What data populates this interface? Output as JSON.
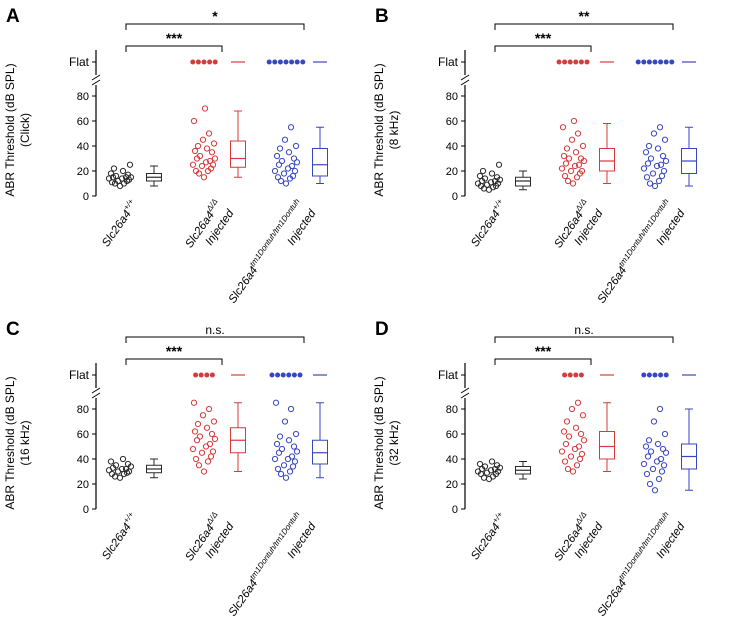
{
  "figure": {
    "background": "#ffffff",
    "flat_label": "Flat",
    "axis_color": "#000000"
  },
  "chart_data": [
    {
      "type": "box+scatter",
      "panel": "A",
      "ylabel": "ABR Threshold (dB SPL)",
      "ylabel2": "(Click)",
      "yticks": [
        0,
        20,
        40,
        60,
        80
      ],
      "ylim": [
        0,
        80
      ],
      "flat_label": "Flat",
      "groups": [
        {
          "prefix": "",
          "gene": "Slc26a4",
          "sup": "+/+",
          "color": "#2a2a2a",
          "points": [
            8,
            10,
            10,
            11,
            12,
            12,
            13,
            14,
            14,
            15,
            15,
            15,
            16,
            17,
            18,
            20,
            22,
            25
          ],
          "box": {
            "lo": 8,
            "q1": 12,
            "median": 15,
            "q3": 18,
            "hi": 24
          },
          "flat_points": 0
        },
        {
          "prefix": "Injected",
          "gene": "Slc26a4",
          "sup": "Δ/Δ",
          "color": "#d43b3b",
          "points": [
            15,
            18,
            20,
            20,
            22,
            24,
            25,
            25,
            27,
            28,
            30,
            30,
            32,
            35,
            36,
            38,
            40,
            42,
            45,
            50,
            60,
            70
          ],
          "box": {
            "lo": 15,
            "q1": 23,
            "median": 30,
            "q3": 44,
            "hi": 68
          },
          "flat_points": 5
        },
        {
          "prefix": "Injected",
          "gene": "Slc26a4",
          "sup": "tm1Dontuh/tm1Dontuh",
          "color": "#3647c0",
          "points": [
            10,
            12,
            14,
            15,
            16,
            18,
            20,
            20,
            22,
            24,
            25,
            27,
            28,
            30,
            32,
            35,
            38,
            40,
            45,
            55
          ],
          "box": {
            "lo": 10,
            "q1": 16,
            "median": 25,
            "q3": 38,
            "hi": 55
          },
          "flat_points": 7
        }
      ],
      "significance": [
        {
          "label": "***",
          "from": 0,
          "to": 1
        },
        {
          "label": "*",
          "from": 0,
          "to": 2
        }
      ]
    },
    {
      "type": "box+scatter",
      "panel": "B",
      "ylabel": "ABR Threshold (dB SPL)",
      "ylabel2": "(8 kHz)",
      "yticks": [
        0,
        20,
        40,
        60,
        80
      ],
      "ylim": [
        0,
        80
      ],
      "flat_label": "Flat",
      "groups": [
        {
          "prefix": "",
          "gene": "Slc26a4",
          "sup": "+/+",
          "color": "#2a2a2a",
          "points": [
            5,
            6,
            7,
            8,
            8,
            9,
            10,
            10,
            11,
            12,
            12,
            13,
            14,
            15,
            16,
            18,
            20,
            25
          ],
          "box": {
            "lo": 5,
            "q1": 8,
            "median": 12,
            "q3": 15,
            "hi": 20
          },
          "flat_points": 0
        },
        {
          "prefix": "Injected",
          "gene": "Slc26a4",
          "sup": "Δ/Δ",
          "color": "#d43b3b",
          "points": [
            10,
            12,
            15,
            16,
            18,
            20,
            20,
            22,
            24,
            25,
            26,
            28,
            30,
            30,
            32,
            35,
            38,
            40,
            45,
            50,
            55,
            60
          ],
          "box": {
            "lo": 10,
            "q1": 20,
            "median": 28,
            "q3": 38,
            "hi": 58
          },
          "flat_points": 6
        },
        {
          "prefix": "Injected",
          "gene": "Slc26a4",
          "sup": "tm1Dontuh/tm1Dontuh",
          "color": "#3647c0",
          "points": [
            8,
            10,
            12,
            15,
            16,
            18,
            20,
            22,
            24,
            25,
            26,
            28,
            30,
            32,
            35,
            38,
            40,
            45,
            50,
            55
          ],
          "box": {
            "lo": 8,
            "q1": 18,
            "median": 28,
            "q3": 38,
            "hi": 55
          },
          "flat_points": 7
        }
      ],
      "significance": [
        {
          "label": "***",
          "from": 0,
          "to": 1
        },
        {
          "label": "**",
          "from": 0,
          "to": 2
        }
      ]
    },
    {
      "type": "box+scatter",
      "panel": "C",
      "ylabel": "ABR Threshold (dB SPL)",
      "ylabel2": "(16 kHz)",
      "yticks": [
        0,
        20,
        40,
        60,
        80
      ],
      "ylim": [
        0,
        80
      ],
      "flat_label": "Flat",
      "groups": [
        {
          "prefix": "",
          "gene": "Slc26a4",
          "sup": "+/+",
          "color": "#2a2a2a",
          "points": [
            25,
            26,
            28,
            28,
            29,
            30,
            30,
            31,
            32,
            32,
            33,
            34,
            35,
            36,
            38,
            40
          ],
          "box": {
            "lo": 25,
            "q1": 29,
            "median": 32,
            "q3": 35,
            "hi": 40
          },
          "flat_points": 0
        },
        {
          "prefix": "Injected",
          "gene": "Slc26a4",
          "sup": "Δ/Δ",
          "color": "#d43b3b",
          "points": [
            30,
            35,
            38,
            40,
            42,
            45,
            46,
            48,
            50,
            52,
            55,
            56,
            58,
            60,
            62,
            65,
            68,
            70,
            75,
            80,
            85
          ],
          "box": {
            "lo": 30,
            "q1": 45,
            "median": 55,
            "q3": 65,
            "hi": 85
          },
          "flat_points": 4
        },
        {
          "prefix": "Injected",
          "gene": "Slc26a4",
          "sup": "tm1Dontuh/tm1Dontuh",
          "color": "#3647c0",
          "points": [
            25,
            28,
            30,
            32,
            34,
            35,
            38,
            40,
            40,
            42,
            45,
            46,
            48,
            50,
            52,
            55,
            58,
            60,
            70,
            80,
            85
          ],
          "box": {
            "lo": 25,
            "q1": 36,
            "median": 45,
            "q3": 55,
            "hi": 85
          },
          "flat_points": 6
        }
      ],
      "significance": [
        {
          "label": "***",
          "from": 0,
          "to": 1
        },
        {
          "label": "n.s.",
          "from": 0,
          "to": 2
        }
      ]
    },
    {
      "type": "box+scatter",
      "panel": "D",
      "ylabel": "ABR Threshold (dB SPL)",
      "ylabel2": "(32 kHz)",
      "yticks": [
        0,
        20,
        40,
        60,
        80
      ],
      "ylim": [
        0,
        80
      ],
      "flat_label": "Flat",
      "groups": [
        {
          "prefix": "",
          "gene": "Slc26a4",
          "sup": "+/+",
          "color": "#2a2a2a",
          "points": [
            24,
            25,
            26,
            28,
            28,
            29,
            30,
            30,
            31,
            32,
            32,
            33,
            34,
            35,
            36,
            38
          ],
          "box": {
            "lo": 24,
            "q1": 28,
            "median": 31,
            "q3": 34,
            "hi": 38
          },
          "flat_points": 0
        },
        {
          "prefix": "Injected",
          "gene": "Slc26a4",
          "sup": "Δ/Δ",
          "color": "#d43b3b",
          "points": [
            30,
            32,
            35,
            38,
            40,
            42,
            44,
            46,
            48,
            50,
            52,
            55,
            58,
            60,
            62,
            65,
            70,
            75,
            80,
            85
          ],
          "box": {
            "lo": 30,
            "q1": 40,
            "median": 50,
            "q3": 62,
            "hi": 85
          },
          "flat_points": 4
        },
        {
          "prefix": "Injected",
          "gene": "Slc26a4",
          "sup": "tm1Dontuh/tm1Dontuh",
          "color": "#3647c0",
          "points": [
            15,
            20,
            24,
            28,
            30,
            32,
            35,
            36,
            38,
            40,
            42,
            45,
            46,
            48,
            50,
            52,
            55,
            60,
            70,
            80
          ],
          "box": {
            "lo": 15,
            "q1": 32,
            "median": 42,
            "q3": 52,
            "hi": 80
          },
          "flat_points": 5
        }
      ],
      "significance": [
        {
          "label": "***",
          "from": 0,
          "to": 1
        },
        {
          "label": "n.s.",
          "from": 0,
          "to": 2
        }
      ]
    }
  ]
}
